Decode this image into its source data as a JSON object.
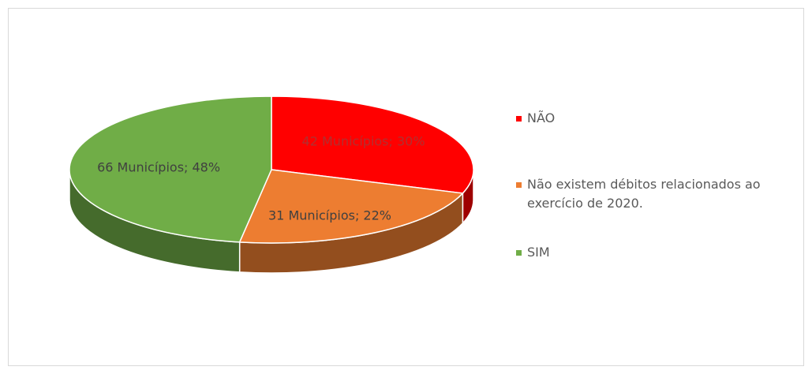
{
  "chart_data": {
    "type": "pie",
    "categories": [
      "NÃO",
      "Não existem débitos relacionados ao exercício de 2020.",
      "SIM"
    ],
    "values": [
      42,
      31,
      66
    ],
    "value_labels": [
      "42 Municípios; 30%",
      "31 Municípios; 22%",
      "66 Municípios; 48%"
    ],
    "colors": [
      "#ff0000",
      "#ed7d31",
      "#70ad47"
    ],
    "legend": "right"
  }
}
